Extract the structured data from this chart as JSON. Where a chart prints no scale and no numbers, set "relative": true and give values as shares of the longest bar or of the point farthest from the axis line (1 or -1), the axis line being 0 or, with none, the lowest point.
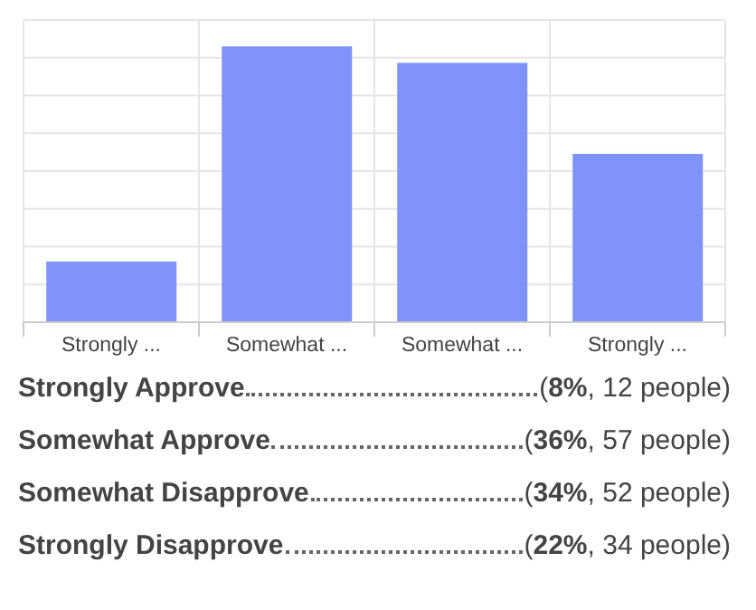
{
  "chart_data": {
    "type": "bar",
    "categories": [
      "Strongly ...",
      "Somewhat ...",
      "Somewhat ...",
      "Strongly ..."
    ],
    "values": [
      0.22,
      1,
      0.94,
      0.61
    ],
    "color": "#7f93fa",
    "relative": true,
    "grid": true,
    "annotations": [
      "Strongly Approve",
      "(8%, 12 people)",
      "Somewhat Approve",
      "(36%, 57 people)",
      "Somewhat Disapprove",
      "(34%, 52 people)",
      "Strongly Disapprove",
      "(22%, 34 people)"
    ]
  }
}
